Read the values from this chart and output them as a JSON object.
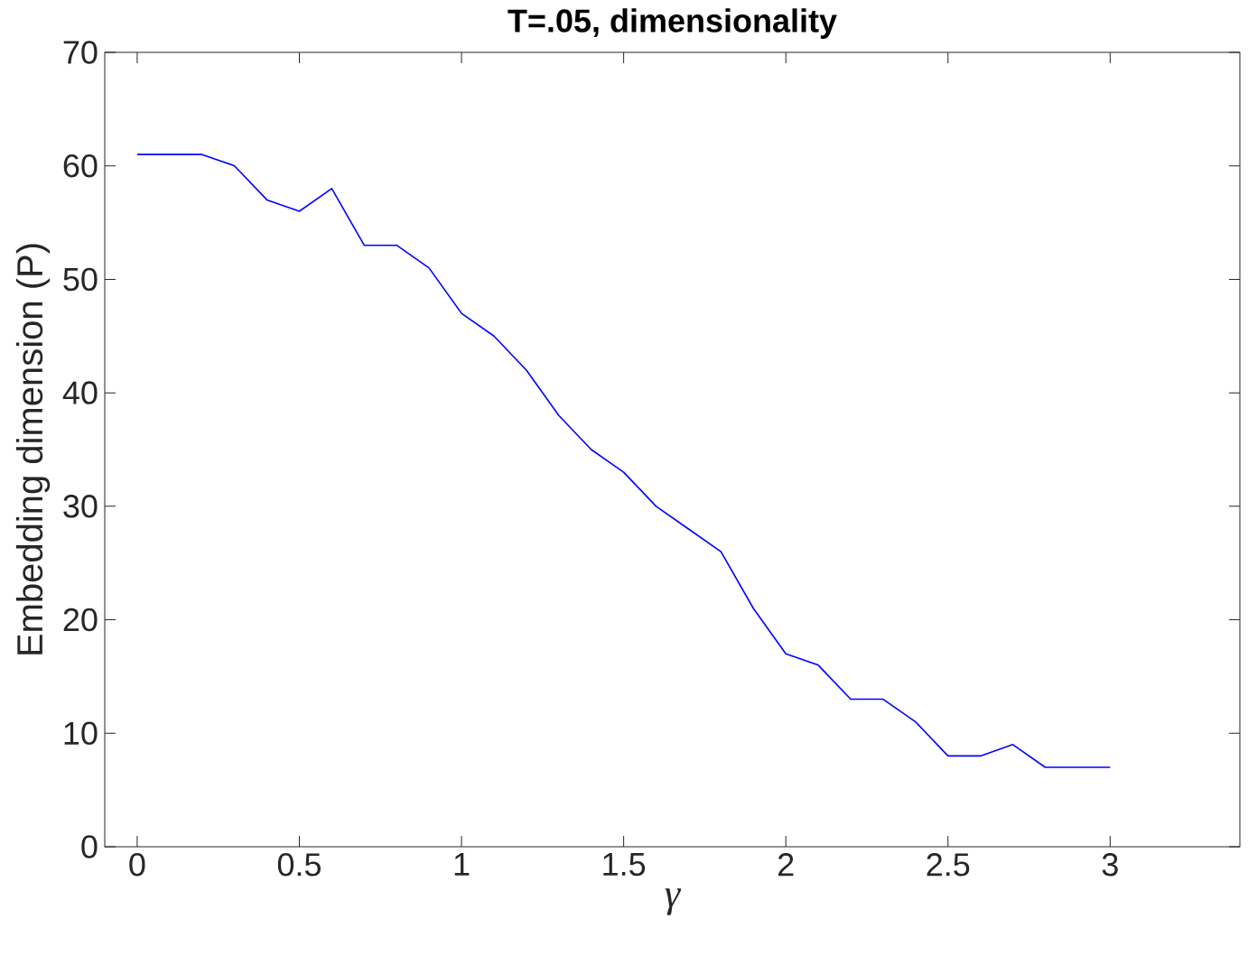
{
  "chart_data": {
    "type": "line",
    "title": "T=.05, dimensionality",
    "xlabel": "γ",
    "ylabel": "Embedding dimension (P)",
    "x": [
      0,
      0.1,
      0.2,
      0.3,
      0.4,
      0.5,
      0.6,
      0.7,
      0.8,
      0.9,
      1.0,
      1.1,
      1.2,
      1.3,
      1.4,
      1.5,
      1.6,
      1.7,
      1.8,
      1.9,
      2.0,
      2.1,
      2.2,
      2.3,
      2.4,
      2.5,
      2.6,
      2.7,
      2.8,
      2.9,
      3.0
    ],
    "values": [
      61,
      61,
      61,
      60,
      57,
      56,
      58,
      53,
      53,
      51,
      47,
      45,
      42,
      38,
      35,
      33,
      30,
      28,
      26,
      21,
      17,
      16,
      13,
      13,
      11,
      8,
      8,
      9,
      7,
      7,
      7
    ],
    "color": "#0000ff",
    "xlim": [
      -0.1,
      3.4
    ],
    "ylim": [
      0,
      70
    ],
    "xticks": [
      0,
      0.5,
      1,
      1.5,
      2,
      2.5,
      3
    ],
    "yticks": [
      0,
      10,
      20,
      30,
      40,
      50,
      60,
      70
    ],
    "marker": "none",
    "line_style": "solid"
  }
}
